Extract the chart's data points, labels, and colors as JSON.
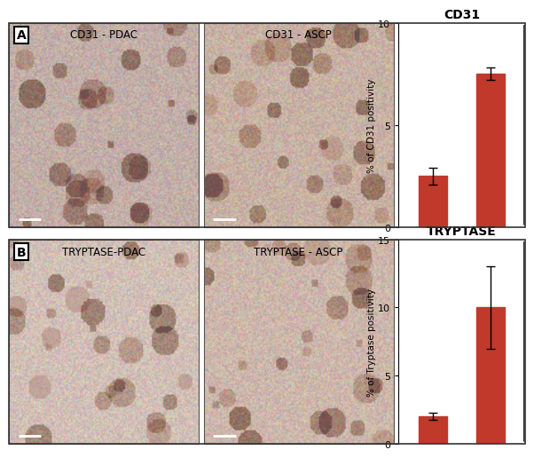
{
  "panel_A": {
    "title": "CD31",
    "ylabel": "% of CD31 positivity",
    "values": [
      2.5,
      7.5
    ],
    "errors": [
      0.4,
      0.3
    ],
    "ylim": [
      0,
      10
    ],
    "yticks": [
      0,
      5,
      10
    ],
    "bar_color": "#C0392B",
    "img_label_1": "CD31 - PDAC",
    "img_label_2": "CD31 - ASCP",
    "panel_label": "A",
    "img1_base_rgb": [
      195,
      175,
      168
    ],
    "img2_base_rgb": [
      200,
      178,
      165
    ]
  },
  "panel_B": {
    "title": "TRYPTASE",
    "ylabel": "% of Tryptase positivity",
    "values": [
      2.0,
      10.0
    ],
    "errors": [
      0.25,
      3.0
    ],
    "ylim": [
      0,
      15
    ],
    "yticks": [
      0,
      5,
      10,
      15
    ],
    "bar_color": "#C0392B",
    "img_label_1": "TRYPTASE-PDAC",
    "img_label_2": "TRYPTASE - ASCP",
    "panel_label": "B",
    "img1_base_rgb": [
      210,
      192,
      183
    ],
    "img2_base_rgb": [
      205,
      183,
      172
    ]
  },
  "background_color": "#FFFFFF",
  "title_fontsize": 10,
  "ylabel_fontsize": 7.5,
  "tick_fontsize": 8,
  "img_label_fontsize": 8.5,
  "panel_label_fontsize": 10,
  "bar_width": 0.5
}
